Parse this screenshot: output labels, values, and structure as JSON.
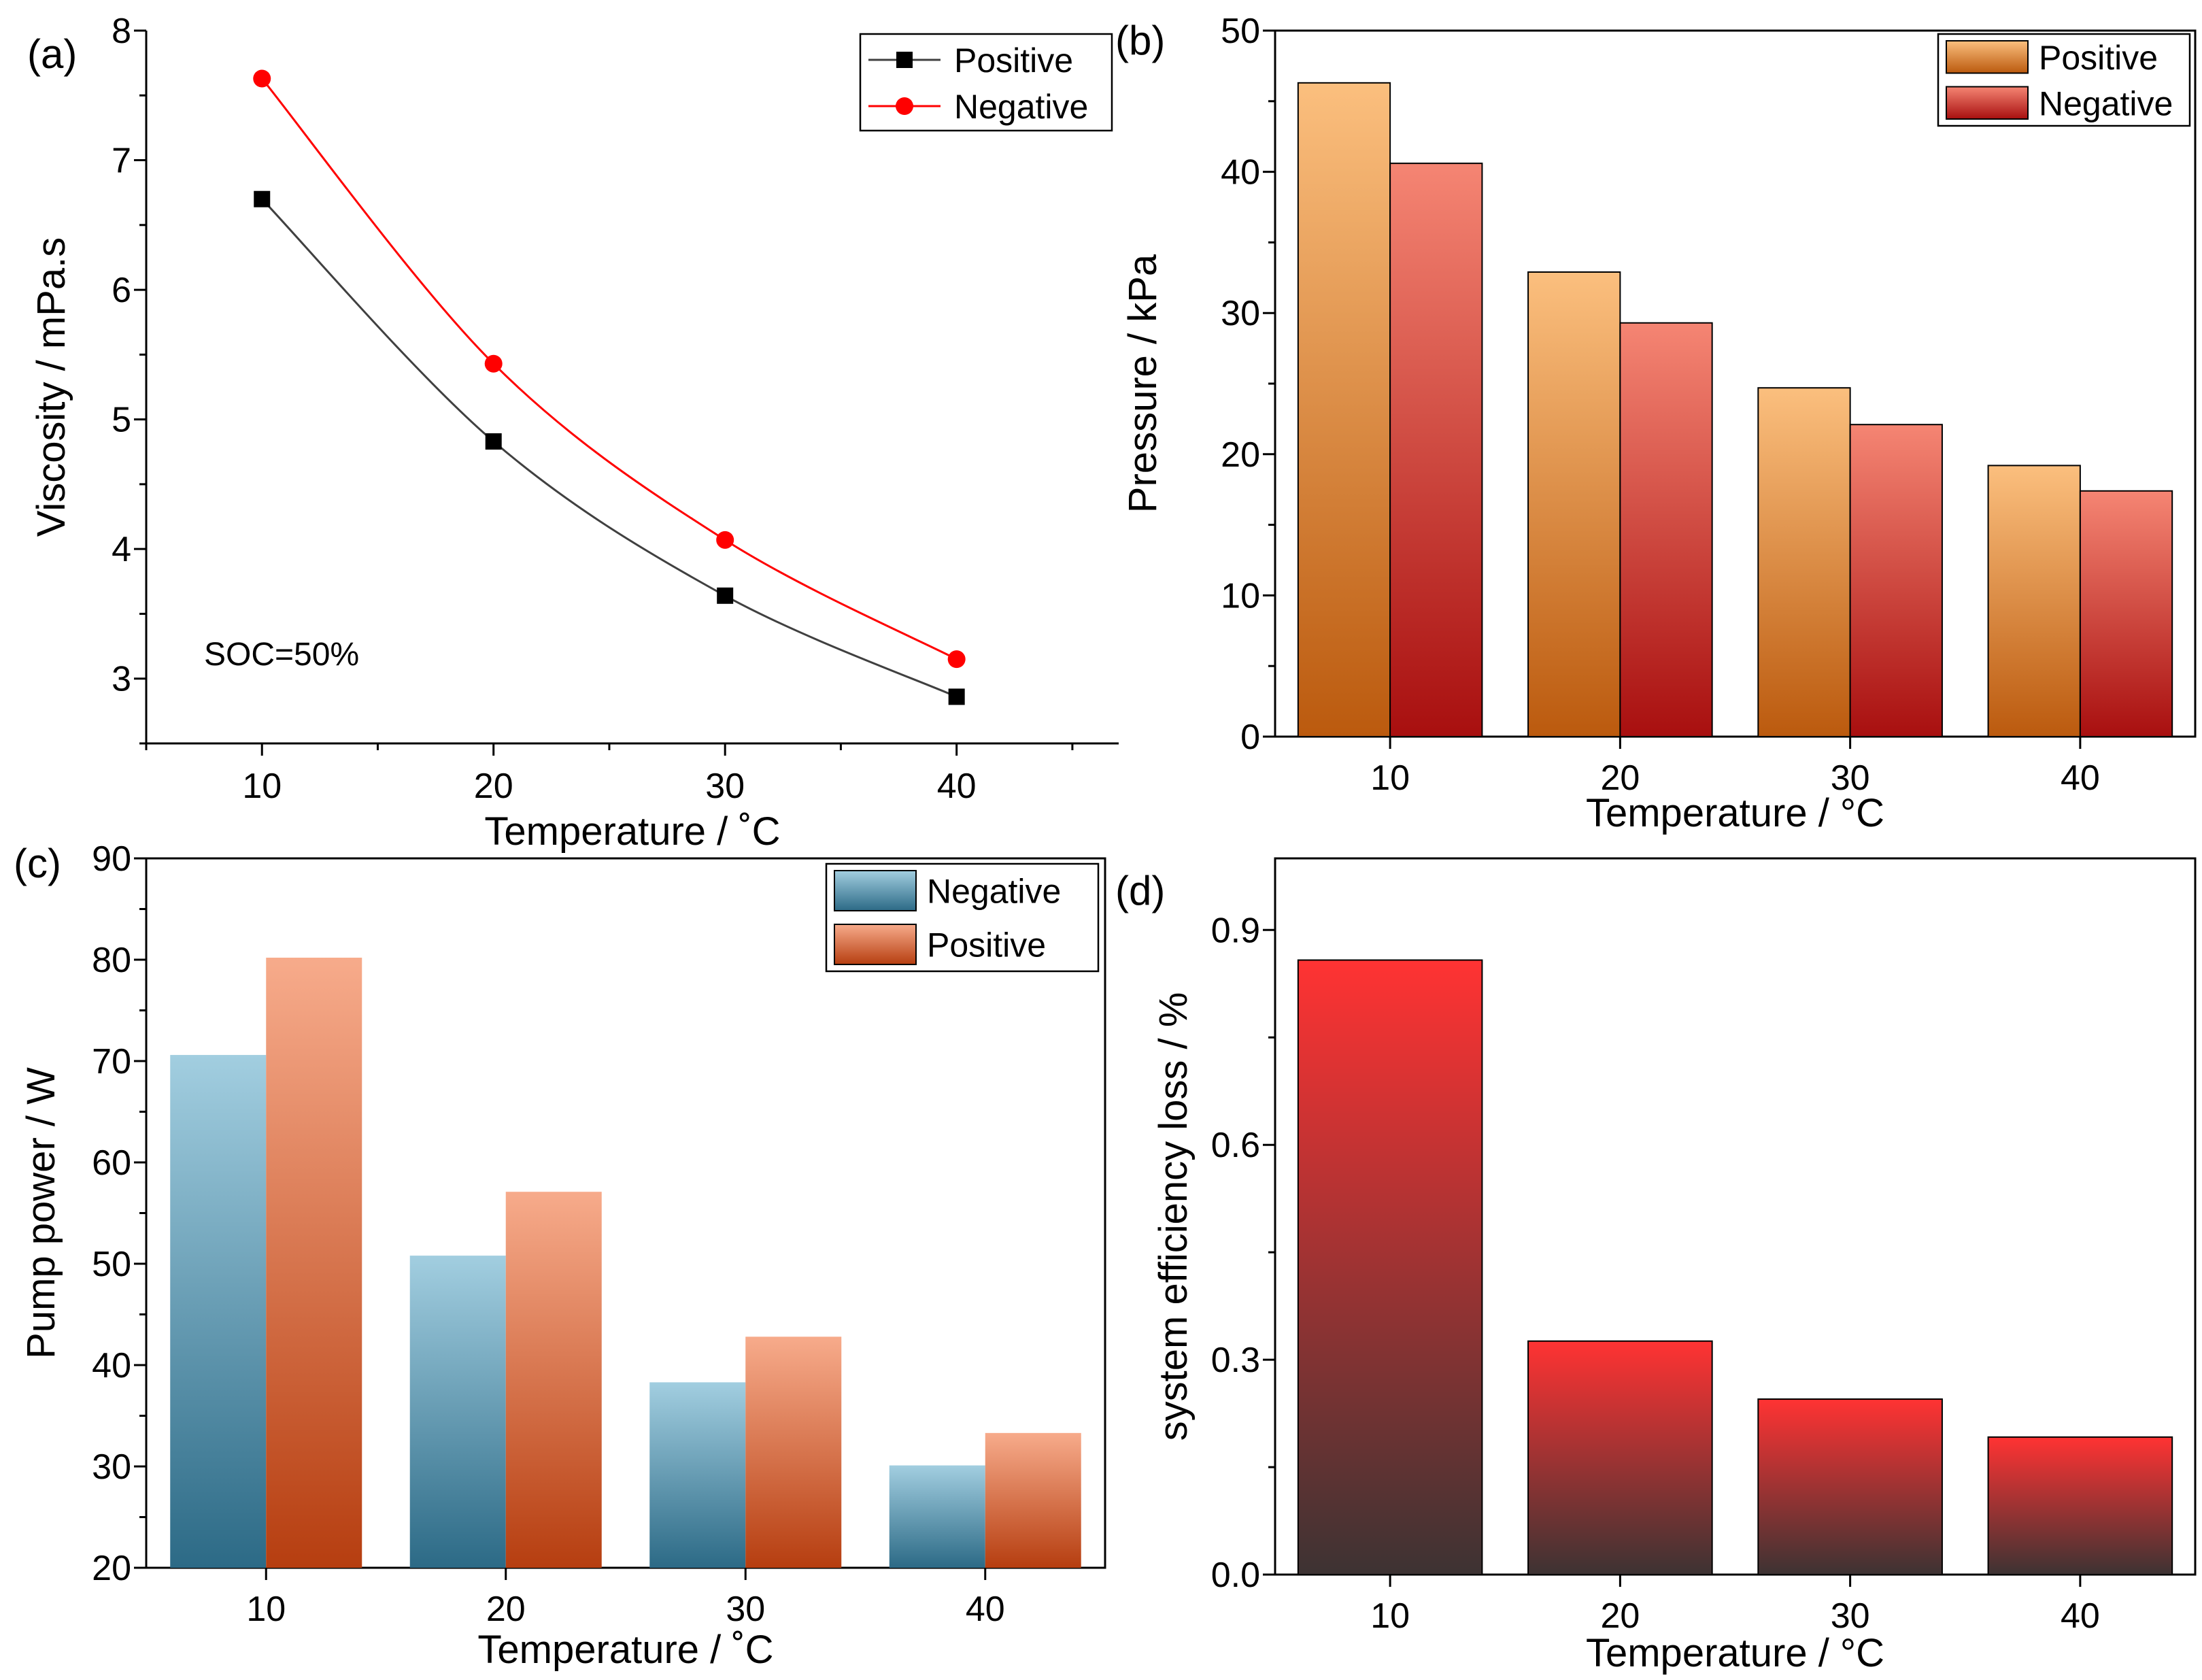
{
  "chart_data": [
    {
      "id": "a",
      "panel_label": "(a)",
      "type": "line",
      "xlabel": "Temperature / ˚C",
      "ylabel": "Viscosity / mPa.s",
      "xlim": [
        5,
        47
      ],
      "ylim": [
        2.5,
        8
      ],
      "xticks": [
        10,
        20,
        30,
        40
      ],
      "yticks": [
        3,
        4,
        5,
        6,
        7,
        8
      ],
      "annotation": "SOC=50%",
      "legend_position": "top-right",
      "series": [
        {
          "name": "Positive",
          "x": [
            10,
            20,
            30,
            40
          ],
          "values": [
            6.7,
            4.83,
            3.64,
            2.86
          ],
          "color": "#000000",
          "line_color": "#404040",
          "marker": "square"
        },
        {
          "name": "Negative",
          "x": [
            10,
            20,
            30,
            40
          ],
          "values": [
            7.63,
            5.43,
            4.07,
            3.15
          ],
          "color": "#ff0000",
          "line_color": "#ff0000",
          "marker": "circle"
        }
      ]
    },
    {
      "id": "b",
      "panel_label": "(b)",
      "type": "bar",
      "xlabel": "Temperature / °C",
      "ylabel": "Pressure / kPa",
      "ylim": [
        0,
        50
      ],
      "yticks": [
        0,
        10,
        20,
        30,
        40,
        50
      ],
      "categories": [
        "10",
        "20",
        "30",
        "40"
      ],
      "legend_position": "top-right",
      "series": [
        {
          "name": "Positive",
          "values": [
            46.3,
            32.9,
            24.7,
            19.2
          ],
          "color_top": "#fbbf7e",
          "color_bottom": "#bb5a0e"
        },
        {
          "name": "Negative",
          "values": [
            40.6,
            29.3,
            22.1,
            17.4
          ],
          "color_top": "#f58573",
          "color_bottom": "#a80f0f"
        }
      ]
    },
    {
      "id": "c",
      "panel_label": "(c)",
      "type": "bar",
      "xlabel": "Temperature / ˚C",
      "ylabel": "Pump power / W",
      "ylim": [
        20,
        90
      ],
      "yticks": [
        20,
        30,
        40,
        50,
        60,
        70,
        80,
        90
      ],
      "categories": [
        "10",
        "20",
        "30",
        "40"
      ],
      "legend_position": "top-right",
      "series": [
        {
          "name": "Negative",
          "values": [
            70.6,
            50.8,
            38.3,
            30.1
          ],
          "color_top": "#a2cee0",
          "color_bottom": "#2c6a86"
        },
        {
          "name": "Positive",
          "values": [
            80.2,
            57.1,
            42.8,
            33.3
          ],
          "color_top": "#f7ab8b",
          "color_bottom": "#b63e10"
        }
      ]
    },
    {
      "id": "d",
      "panel_label": "(d)",
      "type": "bar",
      "xlabel": "Temperature / °C",
      "ylabel": "system efficiency loss / %",
      "ylim": [
        0,
        1
      ],
      "yticks": [
        "0.0",
        "0.3",
        "0.6",
        "0.9"
      ],
      "categories": [
        "10",
        "20",
        "30",
        "40"
      ],
      "series": [
        {
          "name": "system efficiency loss",
          "values": [
            0.858,
            0.326,
            0.245,
            0.192
          ],
          "color_top": "#ff3333",
          "color_bottom": "#3d3333"
        }
      ]
    }
  ]
}
